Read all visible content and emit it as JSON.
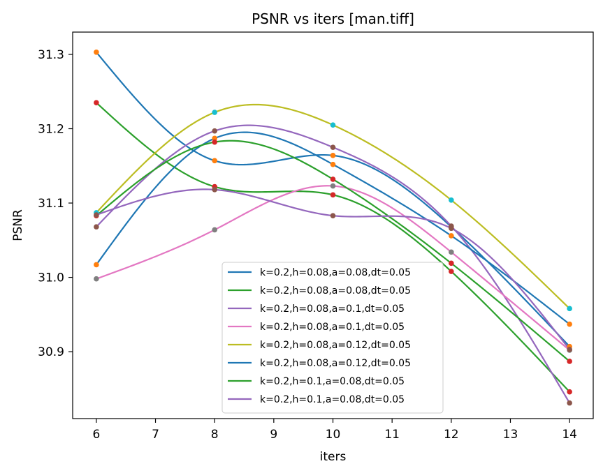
{
  "chart_data": {
    "type": "line",
    "title": "PSNR vs iters  [man.tiff]",
    "xlabel": "iters",
    "ylabel": "PSNR",
    "xlim": [
      5.6,
      14.4
    ],
    "ylim": [
      30.81,
      31.33
    ],
    "xticks": [
      6,
      7,
      8,
      9,
      10,
      11,
      12,
      13,
      14
    ],
    "xtick_labels": [
      "6",
      "7",
      "8",
      "9",
      "10",
      "11",
      "12",
      "13",
      "14"
    ],
    "yticks": [
      30.9,
      31.0,
      31.1,
      31.2,
      31.3
    ],
    "ytick_labels": [
      "30.9",
      "31.0",
      "31.1",
      "31.2",
      "31.3"
    ],
    "grid": false,
    "legend_position": "lower center",
    "x": [
      6,
      8,
      10,
      12,
      14
    ],
    "series": [
      {
        "name": "k=0.2,h=0.08,a=0.08,dt=0.05",
        "color": "#1f77b4",
        "point_color": "#ff7f0e",
        "values": [
          31.303,
          31.157,
          31.164,
          31.068,
          30.907
        ]
      },
      {
        "name": "k=0.2,h=0.08,a=0.08,dt=0.05",
        "color": "#2ca02c",
        "point_color": "#d62728",
        "values": [
          31.235,
          31.122,
          31.111,
          31.008,
          30.846
        ]
      },
      {
        "name": "k=0.2,h=0.08,a=0.1,dt=0.05",
        "color": "#9467bd",
        "point_color": "#8c564b",
        "values": [
          31.068,
          31.197,
          31.175,
          31.069,
          30.831
        ]
      },
      {
        "name": "k=0.2,h=0.08,a=0.1,dt=0.05",
        "color": "#e377c2",
        "point_color": "#7f7f7f",
        "values": [
          30.998,
          31.064,
          31.123,
          31.034,
          30.902
        ]
      },
      {
        "name": "k=0.2,h=0.08,a=0.12,dt=0.05",
        "color": "#bcbd22",
        "point_color": "#17becf",
        "values": [
          31.087,
          31.222,
          31.205,
          31.104,
          30.958
        ]
      },
      {
        "name": "k=0.2,h=0.08,a=0.12,dt=0.05",
        "color": "#1f77b4",
        "point_color": "#ff7f0e",
        "values": [
          31.017,
          31.187,
          31.152,
          31.056,
          30.937
        ]
      },
      {
        "name": "k=0.2,h=0.1,a=0.08,dt=0.05",
        "color": "#2ca02c",
        "point_color": "#d62728",
        "values": [
          31.083,
          31.182,
          31.132,
          31.019,
          30.887
        ]
      },
      {
        "name": "k=0.2,h=0.1,a=0.08,dt=0.05",
        "color": "#9467bd",
        "point_color": "#8c564b",
        "values": [
          31.084,
          31.118,
          31.083,
          31.066,
          30.903
        ]
      }
    ]
  }
}
